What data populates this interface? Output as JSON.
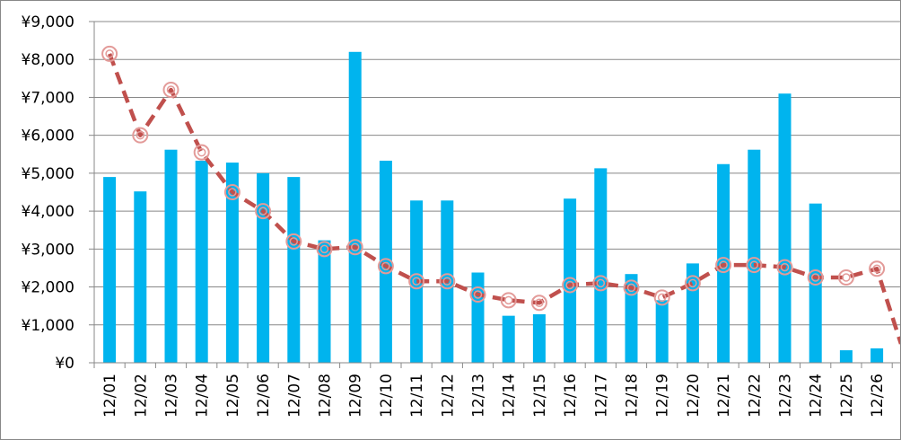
{
  "chart_data": {
    "type": "bar",
    "categories": [
      "12/01",
      "12/02",
      "12/03",
      "12/04",
      "12/05",
      "12/06",
      "12/07",
      "12/08",
      "12/09",
      "12/10",
      "12/11",
      "12/12",
      "12/13",
      "12/14",
      "12/15",
      "12/16",
      "12/17",
      "12/18",
      "12/19",
      "12/20",
      "12/21",
      "12/22",
      "12/23",
      "12/24",
      "12/25",
      "12/26"
    ],
    "series": [
      {
        "type": "bar",
        "values": [
          4900,
          4520,
          5620,
          5330,
          5280,
          5000,
          4900,
          3230,
          8200,
          5330,
          4280,
          4280,
          2380,
          1240,
          1280,
          4330,
          5130,
          2340,
          1650,
          2620,
          5240,
          5620,
          7100,
          4200,
          330,
          380
        ],
        "color": "#00B4EE"
      },
      {
        "type": "line",
        "values": [
          8150,
          6000,
          7200,
          5550,
          4500,
          4000,
          3200,
          3000,
          3050,
          2550,
          2150,
          2150,
          1800,
          1650,
          1580,
          2050,
          2100,
          1980,
          1720,
          2100,
          2580,
          2580,
          2520,
          2250,
          2250,
          2480
        ],
        "color": "#C0504D",
        "trailing_value": 500
      }
    ],
    "y_tick_labels": [
      "¥0",
      "¥1,000",
      "¥2,000",
      "¥3,000",
      "¥4,000",
      "¥5,000",
      "¥6,000",
      "¥7,000",
      "¥8,000",
      "¥9,000"
    ],
    "ylim": [
      0,
      9000
    ],
    "grid": true
  }
}
